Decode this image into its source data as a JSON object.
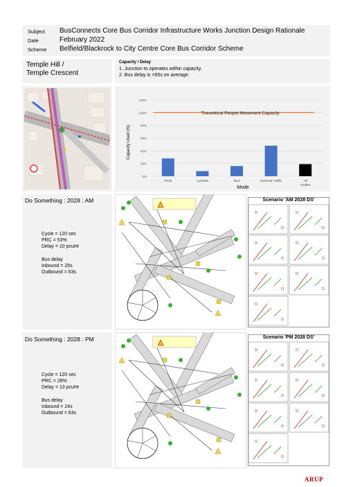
{
  "header": {
    "subject_label": "Subject",
    "subject": "BusConnects Core Bus Corridor Infrastructure Works Junction Design Rationale",
    "date_label": "Date",
    "date": "February 2022",
    "scheme_label": "Scheme",
    "scheme": "Belfield/Blackrock to City Centre Core Bus Corridor Scheme"
  },
  "junction": {
    "name_line1": "Temple Hill /",
    "name_line2": "Temple Crescent",
    "criteria_title": "Capacity / Delay",
    "criteria": [
      "1.  Junction to operates within capacity.",
      "2.  Bus delay is <65s on average."
    ]
  },
  "chart_data": {
    "type": "bar",
    "categories": [
      "Peds",
      "Cyclists",
      "Bus",
      "General Traffic",
      "All modes"
    ],
    "values": [
      28,
      8,
      16,
      48,
      19
    ],
    "bar_colors": [
      "#4472c4",
      "#4472c4",
      "#4472c4",
      "#4472c4",
      "#000000"
    ],
    "ylabel": "Capacity Used (%)",
    "xlabel": "Mode",
    "ylim": [
      0,
      120
    ],
    "yticks": [
      "0%",
      "20%",
      "40%",
      "60%",
      "80%",
      "100%",
      "120%"
    ],
    "reference_line": {
      "value": 100,
      "label": "Theoretical People Movement Capacity",
      "color": "#ed7d31"
    },
    "grid": true
  },
  "am": {
    "title": "Do Something : 2028 : AM",
    "cycle": "Cycle   = 120 sec",
    "prc": "PRC     = 53%",
    "delay": "Delay  = 10 pcuHr",
    "bus_delay_title": "Bus delay",
    "inbound": "Inbound = 25s",
    "outbound": "Outbound = 63s",
    "scenario_title": "Scenario 'AM 2028 DS'"
  },
  "pm": {
    "title": "Do Something : 2028 : PM",
    "cycle": "Cycle   = 120 sec",
    "prc": "PRC     = 28%",
    "delay": "Delay  = 13 pcuHr",
    "bus_delay_title": "Bus delay",
    "inbound": "Inbound = 24s",
    "outbound": "Outbound = 63s",
    "scenario_title": "Scenario 'PM 2028 DS'"
  },
  "logo": "ARUP",
  "colors": {
    "panel": "#f2f2f2",
    "bar": "#4472c4",
    "ref": "#ed7d31",
    "logo": "#c00000"
  }
}
